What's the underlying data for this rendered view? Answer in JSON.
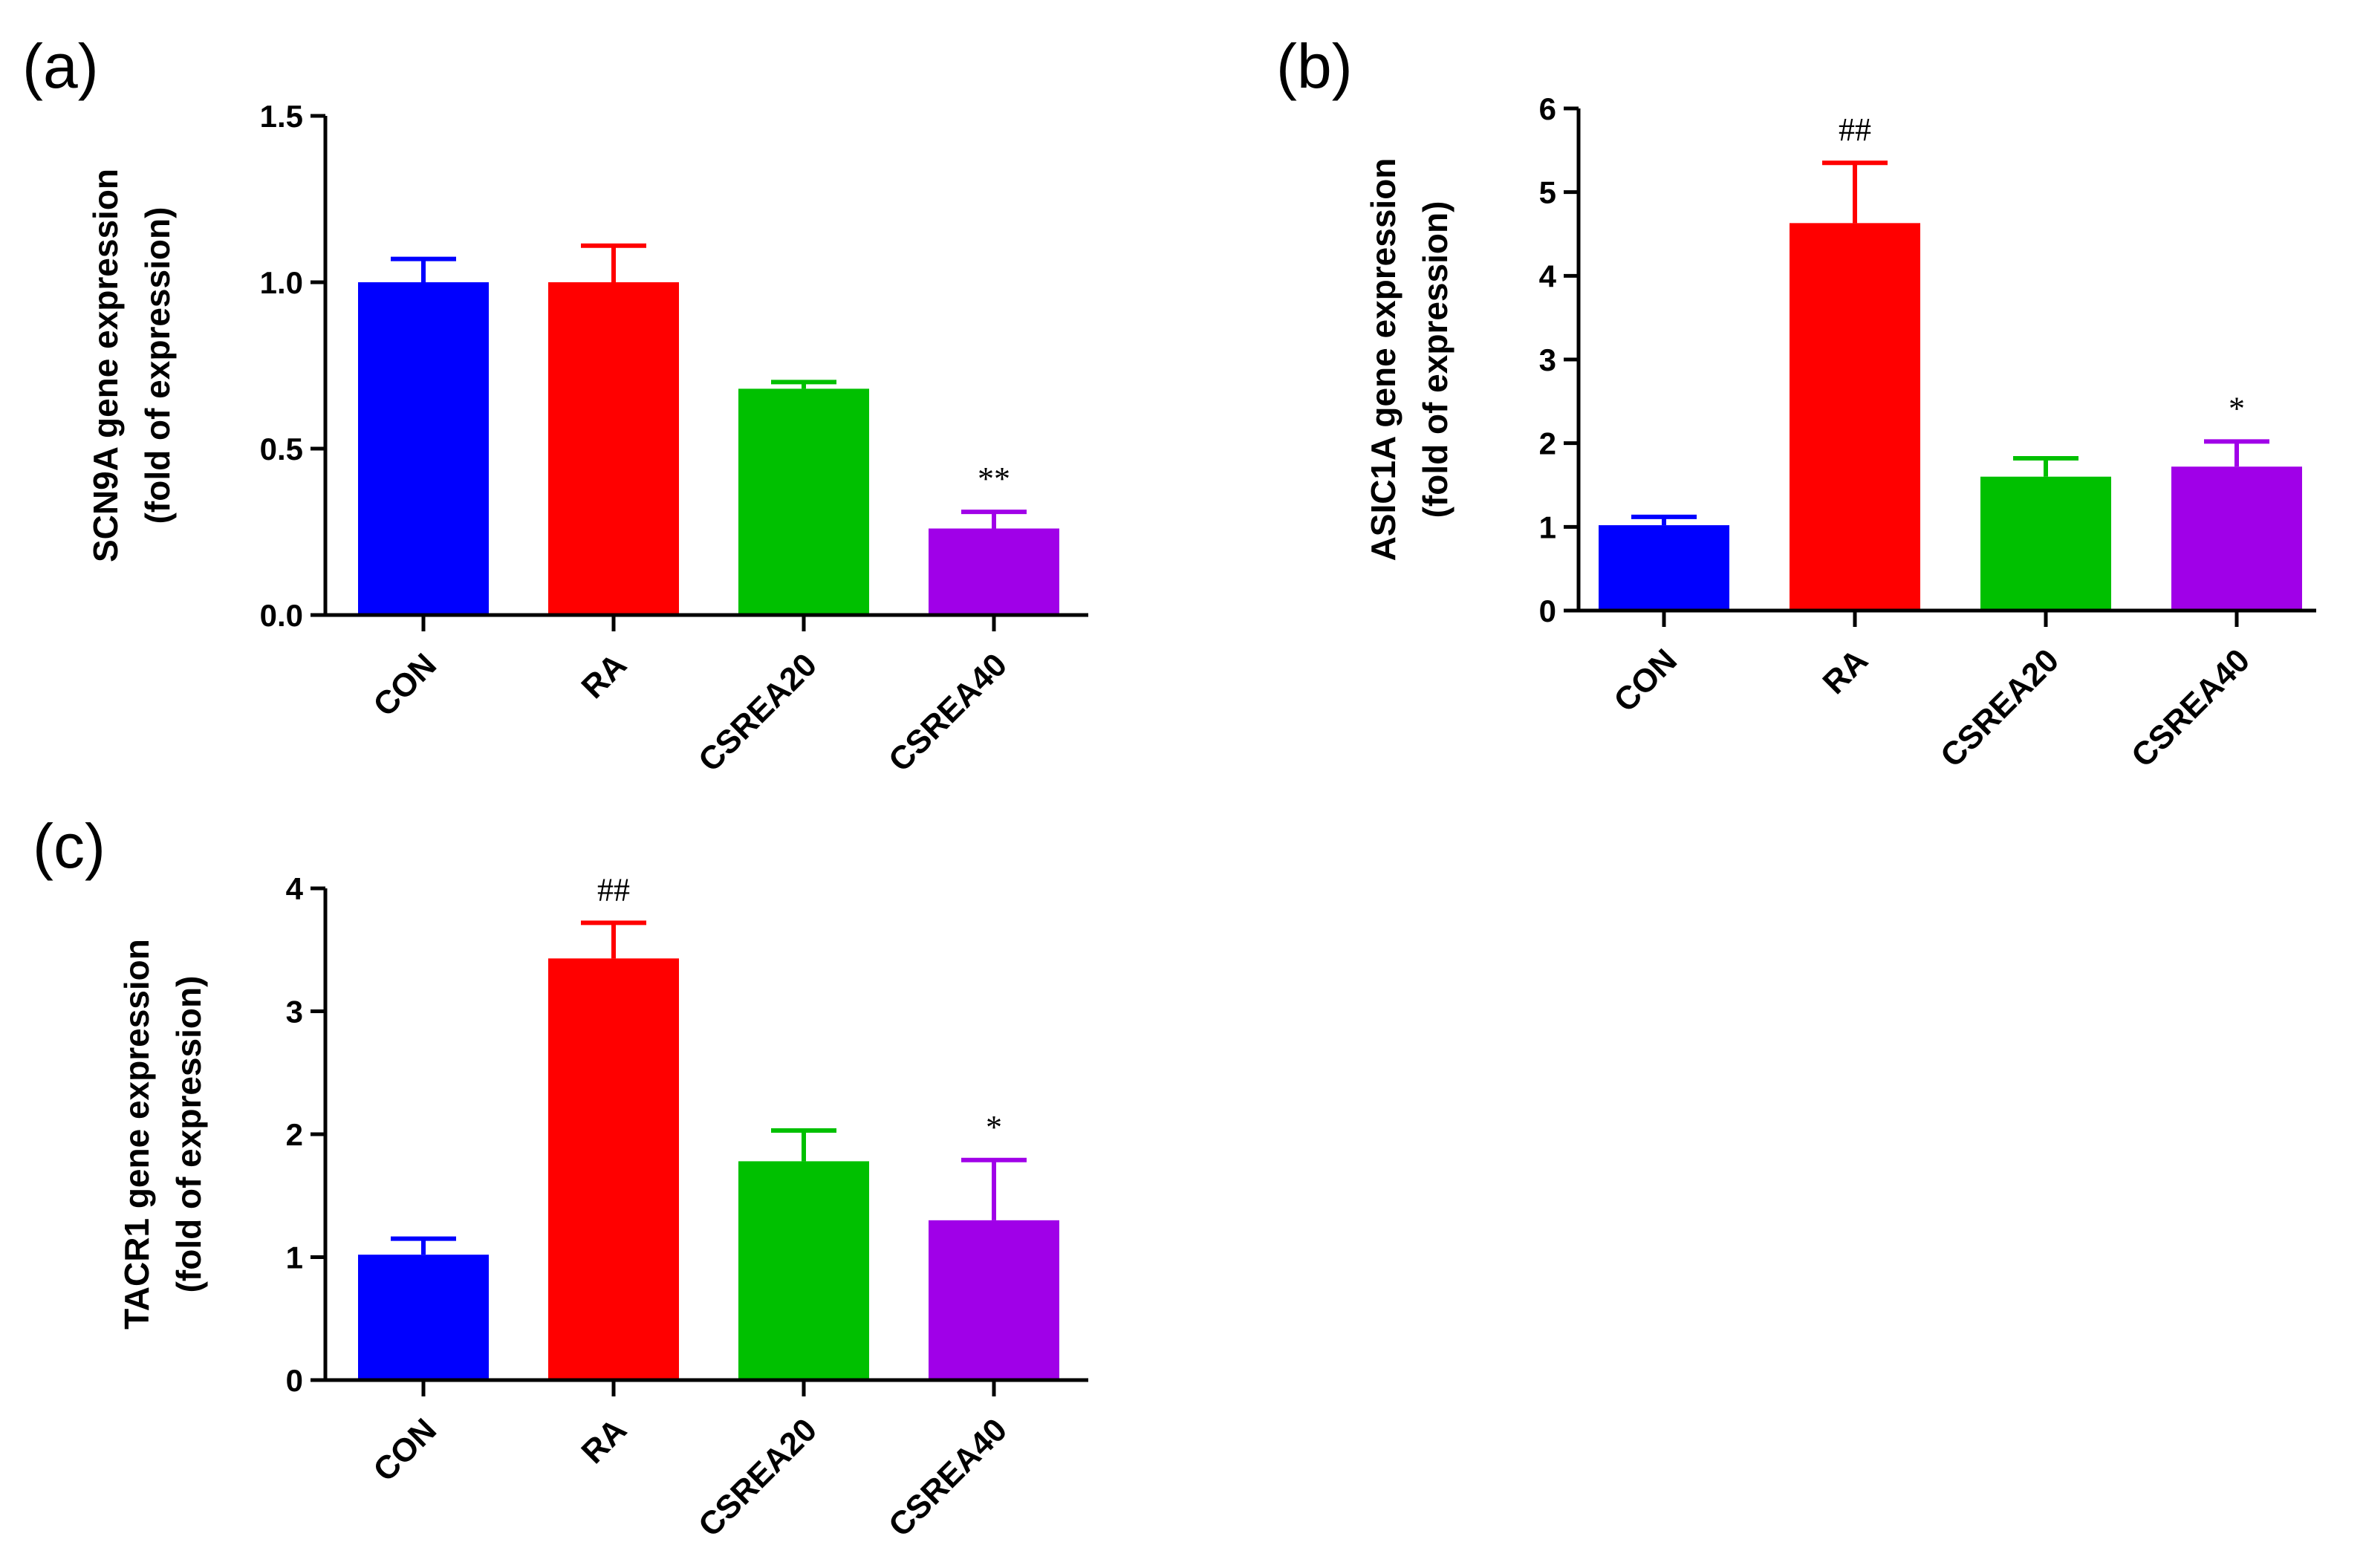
{
  "chart_data": [
    {
      "panel_label": "(a)",
      "type": "bar",
      "ylabel_line1": "SCN9A gene expression",
      "ylabel_line2": "(fold of expression)",
      "ylim": [
        0,
        1.5
      ],
      "yticks": [
        0.0,
        0.5,
        1.0,
        1.5
      ],
      "ytick_labels": [
        "0.0",
        "0.5",
        "1.0",
        "1.5"
      ],
      "categories": [
        "CON",
        "RA",
        "CSREA20",
        "CSREA40"
      ],
      "values": [
        1.0,
        1.0,
        0.68,
        0.26
      ],
      "errors": [
        0.07,
        0.11,
        0.02,
        0.05
      ],
      "annotations": [
        "",
        "",
        "",
        "**"
      ],
      "colors": [
        "#0000ff",
        "#ff0000",
        "#00c000",
        "#a000e8"
      ]
    },
    {
      "panel_label": "(b)",
      "type": "bar",
      "ylabel_line1": "ASIC1A gene expression",
      "ylabel_line2": "(fold of expression)",
      "ylim": [
        0,
        6
      ],
      "yticks": [
        0,
        1,
        2,
        3,
        4,
        5,
        6
      ],
      "ytick_labels": [
        "0",
        "1",
        "2",
        "3",
        "4",
        "5",
        "6"
      ],
      "categories": [
        "CON",
        "RA",
        "CSREA20",
        "CSREA40"
      ],
      "values": [
        1.02,
        4.63,
        1.6,
        1.72
      ],
      "errors": [
        0.1,
        0.72,
        0.22,
        0.3
      ],
      "annotations": [
        "",
        "##",
        "",
        "*"
      ],
      "colors": [
        "#0000ff",
        "#ff0000",
        "#00c000",
        "#a000e8"
      ]
    },
    {
      "panel_label": "(c)",
      "type": "bar",
      "ylabel_line1": "TACR1 gene expression",
      "ylabel_line2": "(fold of expression)",
      "ylim": [
        0,
        4
      ],
      "yticks": [
        0,
        1,
        2,
        3,
        4
      ],
      "ytick_labels": [
        "0",
        "1",
        "2",
        "3",
        "4"
      ],
      "categories": [
        "CON",
        "RA",
        "CSREA20",
        "CSREA40"
      ],
      "values": [
        1.02,
        3.43,
        1.78,
        1.3
      ],
      "errors": [
        0.13,
        0.29,
        0.25,
        0.49
      ],
      "annotations": [
        "",
        "##",
        "",
        "*"
      ],
      "colors": [
        "#0000ff",
        "#ff0000",
        "#00c000",
        "#a000e8"
      ]
    }
  ]
}
